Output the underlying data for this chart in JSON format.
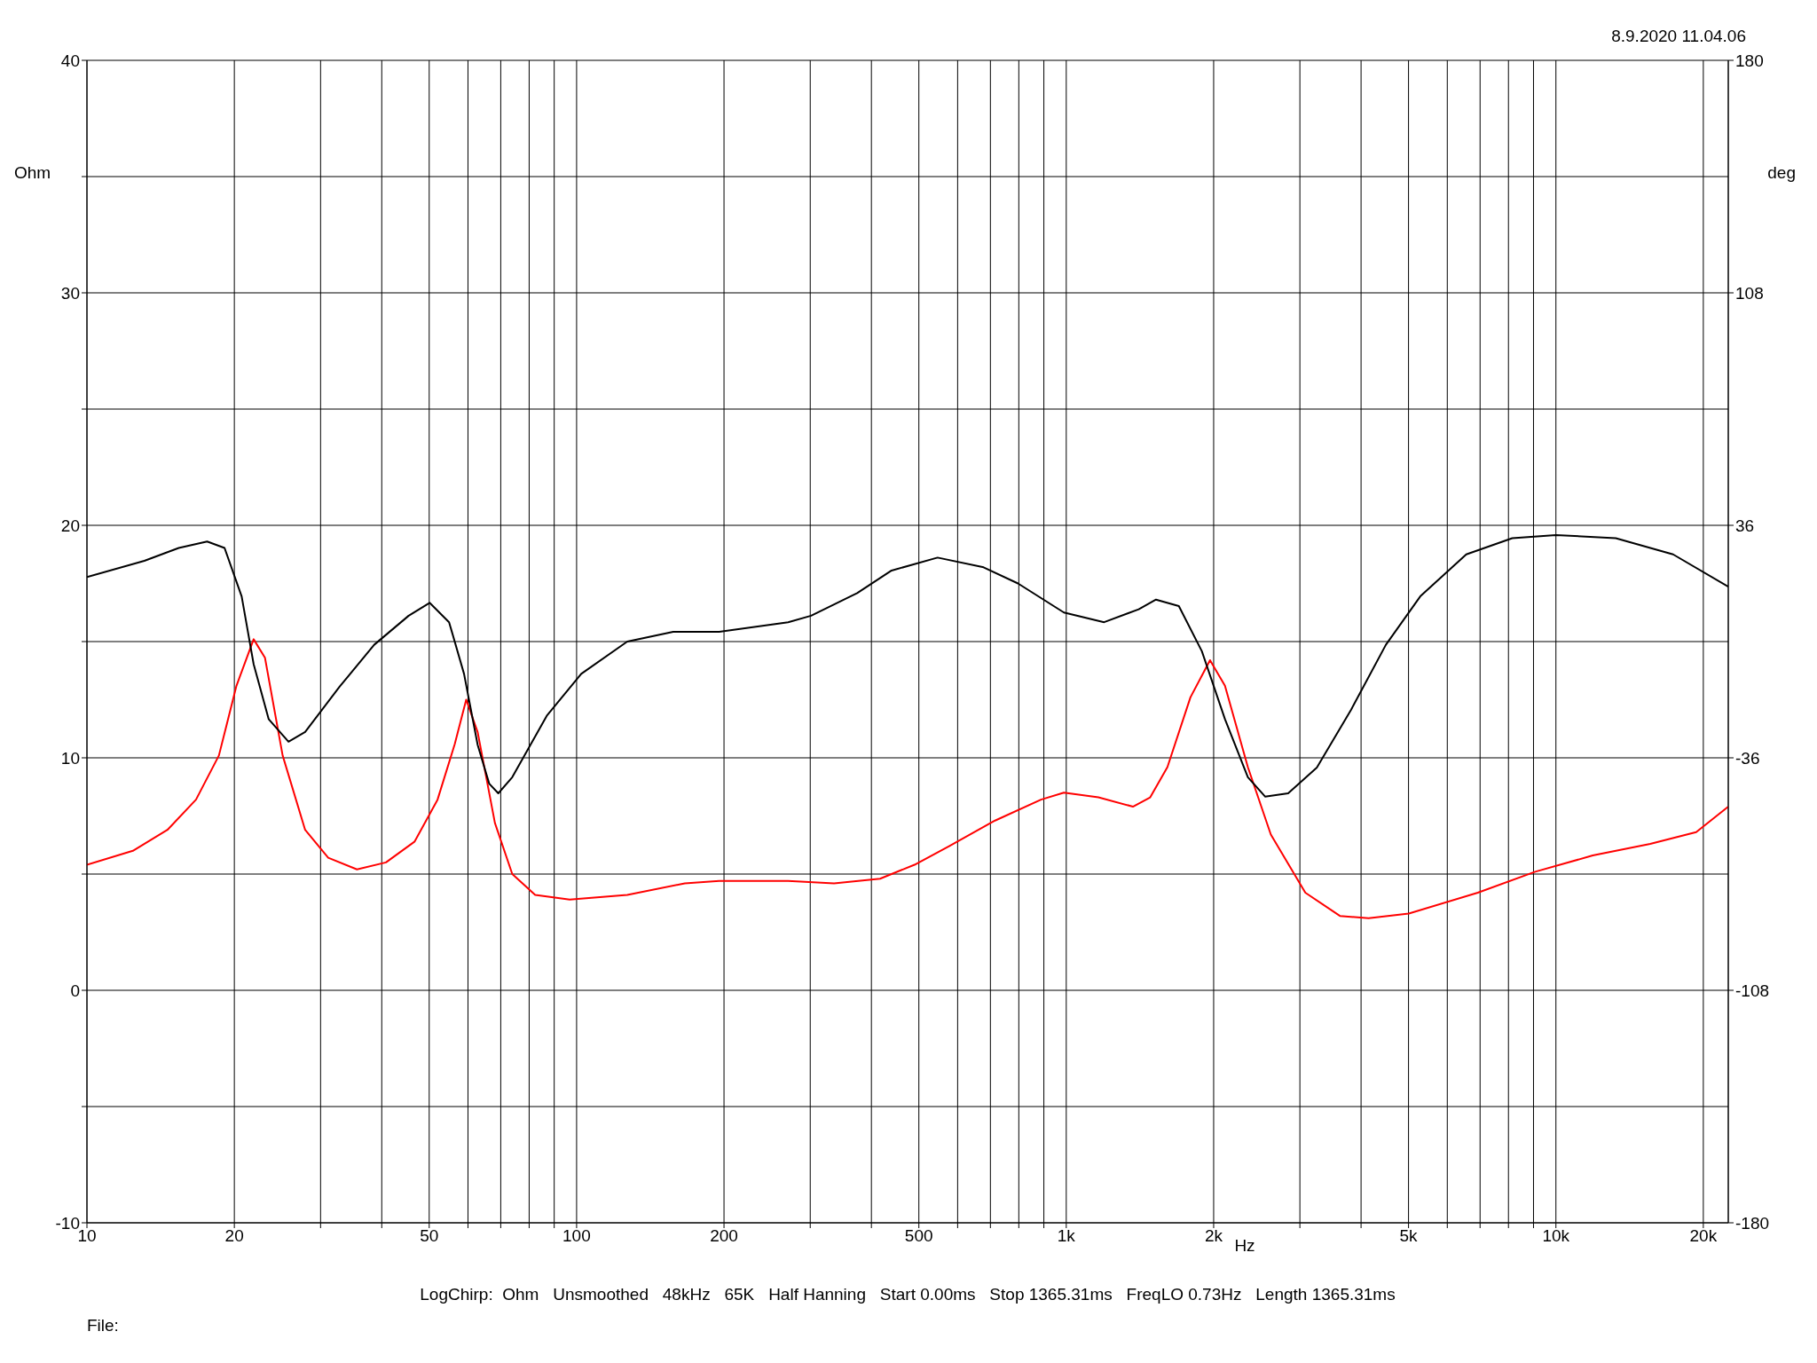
{
  "chart_data": {
    "type": "line",
    "xlabel": "Hz",
    "ylabel": "Ohm",
    "y2label": "deg",
    "log": "x",
    "grid": true,
    "legend": false,
    "marker": "none",
    "line_style": "solid",
    "annotations": [
      "8.9.2020 11.04.06",
      "LogChirp:  Ohm   Unsmoothed   48kHz   65K   Half Hanning   Start 0.00ms   Stop 1365.31ms   FreqLO 0.73Hz   Length 1365.31ms",
      "File:"
    ],
    "xlim": [
      10,
      22490
    ],
    "xticks": [
      10,
      20,
      {
        "value": 30,
        "label": null
      },
      {
        "value": 40,
        "label": null
      },
      50,
      {
        "value": 60,
        "label": null
      },
      {
        "value": 70,
        "label": null
      },
      {
        "value": 80,
        "label": null
      },
      {
        "value": 90,
        "label": null
      },
      100,
      200,
      {
        "value": 300,
        "label": null
      },
      {
        "value": 400,
        "label": null
      },
      500,
      {
        "value": 600,
        "label": null
      },
      {
        "value": 700,
        "label": null
      },
      {
        "value": 800,
        "label": null
      },
      {
        "value": 900,
        "label": null
      },
      {
        "value": 1000,
        "label": "1k"
      },
      {
        "value": 2000,
        "label": "2k"
      },
      {
        "value": 3000,
        "label": null
      },
      {
        "value": 4000,
        "label": null
      },
      {
        "value": 5000,
        "label": "5k"
      },
      {
        "value": 6000,
        "label": null
      },
      {
        "value": 7000,
        "label": null
      },
      {
        "value": 8000,
        "label": null
      },
      {
        "value": 9000,
        "label": null
      },
      {
        "value": 10000,
        "label": "10k"
      },
      {
        "value": 20000,
        "label": "20k"
      }
    ],
    "ylim": [
      -10,
      40
    ],
    "yticks": [
      -10,
      {
        "value": -5,
        "label": null
      },
      0,
      {
        "value": 5,
        "label": null
      },
      10,
      {
        "value": 15,
        "label": null
      },
      20,
      {
        "value": 25,
        "label": null
      },
      30,
      {
        "value": 35,
        "label": null
      },
      40
    ],
    "y2lim": [
      -180,
      180
    ],
    "y2ticks": [
      -180,
      -108,
      -36,
      36,
      108,
      180
    ],
    "series": [
      {
        "color": "#ff0000",
        "x": [
          10,
          12.41,
          14.6,
          16.7,
          18.6,
          20.2,
          21.9,
          23.1,
          25.1,
          27.9,
          31.1,
          35.6,
          40.8,
          46.7,
          52,
          56.4,
          59.5,
          62.8,
          68.1,
          73.9,
          82.3,
          96.8,
          126.9,
          166.3,
          195.5,
          270.4,
          335.6,
          416.7,
          489.9,
          576.3,
          715.4,
          888,
          989,
          1163,
          1368,
          1484,
          1609,
          1793,
          1966,
          2109,
          2349,
          2617,
          3078,
          3621,
          4144,
          5007,
          6925,
          9073,
          11890,
          15580,
          19340,
          22490
        ],
        "values": [
          5.4,
          6.0,
          6.9,
          8.2,
          10.1,
          13.1,
          15.1,
          14.3,
          10.1,
          6.9,
          5.7,
          5.2,
          5.5,
          6.4,
          8.2,
          10.6,
          12.5,
          11.1,
          7.2,
          5.0,
          4.1,
          3.9,
          4.1,
          4.6,
          4.7,
          4.7,
          4.6,
          4.8,
          5.4,
          6.2,
          7.3,
          8.2,
          8.5,
          8.3,
          7.9,
          8.3,
          9.6,
          12.6,
          14.2,
          13.1,
          9.6,
          6.7,
          4.2,
          3.2,
          3.1,
          3.3,
          4.2,
          5.1,
          5.8,
          6.3,
          6.8,
          7.9
        ]
      },
      {
        "color": "#000000",
        "axis": "y2",
        "x": [
          10,
          13.1,
          15.4,
          17.6,
          19.1,
          20.7,
          21.9,
          23.5,
          25.8,
          27.9,
          32.8,
          38.6,
          45.4,
          50.1,
          54.9,
          58.9,
          62.8,
          66.3,
          69.2,
          73.9,
          86.9,
          102.2,
          126.9,
          157.5,
          195.5,
          270.4,
          301.2,
          374.1,
          439.8,
          546,
          677.8,
          796.9,
          989,
          1195,
          1406,
          1525,
          1698,
          1892,
          2109,
          2349,
          2547,
          2839,
          3249,
          3820,
          4495,
          5284,
          6560,
          8144,
          10000,
          13250,
          17350,
          22490
        ],
        "values": [
          20,
          25,
          29,
          31,
          29,
          14,
          -7,
          -24,
          -31,
          -28,
          -14,
          -1,
          8,
          12,
          6,
          -10,
          -32,
          -44,
          -47,
          -42,
          -23,
          -10,
          0,
          3,
          3,
          6,
          8,
          15,
          22,
          26,
          23,
          18,
          9,
          6,
          10,
          13,
          11,
          -3,
          -24,
          -42,
          -48,
          -47,
          -39,
          -21,
          -1,
          14,
          27,
          32,
          33,
          32,
          27,
          17
        ]
      }
    ]
  }
}
